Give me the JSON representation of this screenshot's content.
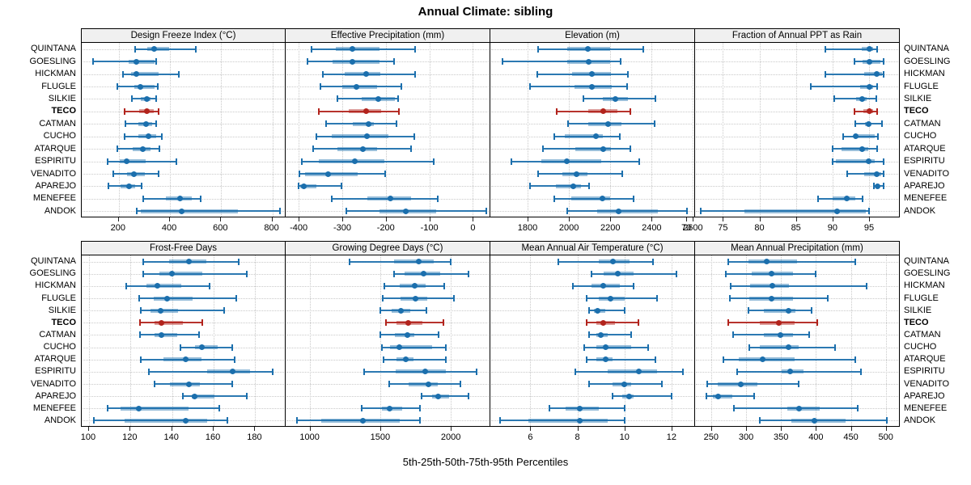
{
  "title": "Annual Climate: sibling",
  "caption": "5th-25th-50th-75th-95th Percentiles",
  "highlight_site": "TECO",
  "colors": {
    "series": "#1b6fad",
    "highlight": "#b2231c",
    "header_bg": "#f0f0f0",
    "grid": "#c9c9c9",
    "panel_border": "#000000"
  },
  "sites": [
    "QUINTANA",
    "GOESLING",
    "HICKMAN",
    "FLUGLE",
    "SILKIE",
    "TECO",
    "CATMAN",
    "CUCHO",
    "ATARQUE",
    "ESPIRITU",
    "VENADITO",
    "APAREJO",
    "MENEFEE",
    "ANDOK"
  ],
  "chart_data": {
    "type": "interval-dotplot-trellis",
    "note": "values per site are [p5, p25, p50, p75, p95] percentiles",
    "layout": {
      "rows": 2,
      "cols": 4,
      "grid": "dotted",
      "legend": "none",
      "highlight": "TECO"
    },
    "panels": [
      {
        "title": "Design Freeze Index (°C)",
        "ticks": [
          200,
          400,
          600,
          800
        ],
        "xlim": [
          55,
          855
        ],
        "values": [
          [
            265,
            312,
            337,
            398,
            500
          ],
          [
            100,
            237,
            267,
            339,
            345
          ],
          [
            215,
            247,
            269,
            355,
            433
          ],
          [
            195,
            262,
            283,
            340,
            353
          ],
          [
            250,
            285,
            310,
            323,
            346
          ],
          [
            222,
            280,
            308,
            338,
            356
          ],
          [
            227,
            277,
            305,
            331,
            345
          ],
          [
            224,
            277,
            316,
            345,
            368
          ],
          [
            195,
            254,
            293,
            323,
            358
          ],
          [
            157,
            204,
            231,
            306,
            425
          ],
          [
            177,
            233,
            260,
            301,
            355
          ],
          [
            160,
            208,
            240,
            263,
            290
          ],
          [
            295,
            385,
            440,
            485,
            520
          ],
          [
            270,
            285,
            445,
            665,
            830
          ]
        ]
      },
      {
        "title": "Effective Precipitation (mm)",
        "ticks": [
          -400,
          -300,
          -200,
          -100,
          0
        ],
        "xlim": [
          -430,
          40
        ],
        "values": [
          [
            -371,
            -315,
            -276,
            -214,
            -132
          ],
          [
            -380,
            -322,
            -277,
            -215,
            -181
          ],
          [
            -345,
            -295,
            -246,
            -212,
            -132
          ],
          [
            -350,
            -300,
            -267,
            -220,
            -165
          ],
          [
            -312,
            -256,
            -218,
            -180,
            -172
          ],
          [
            -354,
            -286,
            -246,
            -210,
            -169
          ],
          [
            -338,
            -276,
            -240,
            -228,
            -176
          ],
          [
            -359,
            -325,
            -243,
            -194,
            -134
          ],
          [
            -367,
            -312,
            -253,
            -220,
            -142
          ],
          [
            -393,
            -354,
            -271,
            -204,
            -90
          ],
          [
            -398,
            -385,
            -333,
            -265,
            -201
          ],
          [
            -400,
            -397,
            -389,
            -360,
            -302
          ],
          [
            -325,
            -243,
            -189,
            -142,
            -80
          ],
          [
            -290,
            -215,
            -155,
            -85,
            30
          ]
        ]
      },
      {
        "title": "Elevation (m)",
        "ticks": [
          1800,
          2000,
          2200,
          2400,
          2600
        ],
        "xlim": [
          1620,
          2610
        ],
        "values": [
          [
            1850,
            1990,
            2090,
            2200,
            2360
          ],
          [
            1680,
            1990,
            2095,
            2200,
            2250
          ],
          [
            1845,
            2015,
            2110,
            2205,
            2285
          ],
          [
            1810,
            2025,
            2110,
            2205,
            2280
          ],
          [
            2070,
            2165,
            2225,
            2285,
            2420
          ],
          [
            1940,
            2095,
            2165,
            2235,
            2295
          ],
          [
            1995,
            2095,
            2190,
            2255,
            2415
          ],
          [
            1930,
            1980,
            2130,
            2165,
            2245
          ],
          [
            1875,
            2030,
            2165,
            2205,
            2295
          ],
          [
            1720,
            1865,
            1990,
            2155,
            2340
          ],
          [
            1850,
            1970,
            2037,
            2090,
            2257
          ],
          [
            1810,
            1937,
            2020,
            2057,
            2097
          ],
          [
            1930,
            2010,
            2160,
            2200,
            2313
          ],
          [
            1990,
            2137,
            2240,
            2430,
            2570
          ]
        ]
      },
      {
        "title": "Fraction of Annual PPT as Rain",
        "ticks": [
          70,
          75,
          80,
          85,
          90,
          95
        ],
        "xlim": [
          71.2,
          99.2
        ],
        "values": [
          [
            89,
            94,
            95.1,
            95.5,
            96.1
          ],
          [
            93,
            94.1,
            95.1,
            96.5,
            97
          ],
          [
            89,
            94.3,
            96,
            96.8,
            97
          ],
          [
            87,
            93.8,
            95,
            95.6,
            96.1
          ],
          [
            90.2,
            93.2,
            94.1,
            94.7,
            96
          ],
          [
            93,
            94.2,
            95,
            95.5,
            96.1
          ],
          [
            93.1,
            94.4,
            94.9,
            95.2,
            96.8
          ],
          [
            91.5,
            92.9,
            93.2,
            95.8,
            96.2
          ],
          [
            90,
            91.2,
            94,
            94.9,
            96.1
          ],
          [
            90,
            90.5,
            94.9,
            95.8,
            97
          ],
          [
            92,
            94.3,
            96,
            96.6,
            97
          ],
          [
            95.7,
            96,
            96.2,
            96.4,
            97
          ],
          [
            88,
            90,
            92,
            93.1,
            94.1
          ],
          [
            72,
            78,
            90.6,
            94.6,
            95
          ]
        ]
      },
      {
        "title": "Frost-Free Days",
        "ticks": [
          100,
          120,
          140,
          160,
          180
        ],
        "xlim": [
          96.5,
          195
        ],
        "values": [
          [
            126,
            138.5,
            148,
            156.5,
            172
          ],
          [
            126,
            134,
            140,
            154.5,
            176
          ],
          [
            118,
            127.5,
            133,
            144.5,
            158
          ],
          [
            124,
            131,
            137.5,
            150,
            171
          ],
          [
            125,
            129.5,
            134.5,
            143,
            165
          ],
          [
            124.5,
            131.5,
            135,
            145,
            154.5
          ],
          [
            124.5,
            131.5,
            135,
            142.5,
            153
          ],
          [
            144,
            151,
            154.5,
            162,
            169
          ],
          [
            125,
            136,
            146.5,
            154,
            170
          ],
          [
            129,
            157,
            169,
            177.5,
            188.5
          ],
          [
            131.5,
            139,
            148,
            153.5,
            169
          ],
          [
            145,
            149.5,
            151,
            160.5,
            176
          ],
          [
            109,
            115,
            124,
            148,
            162.5
          ],
          [
            102.5,
            117,
            146.5,
            157,
            166.5
          ]
        ]
      },
      {
        "title": "Growing Degree Days (°C)",
        "ticks": [
          1000,
          1500,
          2000
        ],
        "xlim": [
          830,
          2280
        ],
        "values": [
          [
            1280,
            1600,
            1775,
            1880,
            2000
          ],
          [
            1600,
            1675,
            1805,
            1925,
            2125
          ],
          [
            1527,
            1640,
            1745,
            1820,
            1955
          ],
          [
            1517,
            1642,
            1748,
            1834,
            2020
          ],
          [
            1498,
            1580,
            1646,
            1710,
            1830
          ],
          [
            1542,
            1613,
            1696,
            1800,
            1950
          ],
          [
            1503,
            1603,
            1690,
            1744,
            1916
          ],
          [
            1513,
            1570,
            1638,
            1868,
            1964
          ],
          [
            1522,
            1613,
            1680,
            1734,
            1964
          ],
          [
            1388,
            1609,
            1820,
            1964,
            2185
          ],
          [
            1565,
            1700,
            1843,
            1906,
            2070
          ],
          [
            1795,
            1868,
            1910,
            1987,
            2127
          ],
          [
            1369,
            1513,
            1565,
            1657,
            1782
          ],
          [
            908,
            1080,
            1378,
            1638,
            1782
          ]
        ]
      },
      {
        "title": "Mean Annual Air Temperature (°C)",
        "ticks": [
          6,
          8,
          10,
          12
        ],
        "xlim": [
          4.3,
          13.0
        ],
        "values": [
          [
            7.2,
            8.9,
            9.5,
            10.2,
            11.2
          ],
          [
            8.6,
            9.1,
            9.7,
            10.4,
            12.2
          ],
          [
            7.8,
            8.6,
            9.1,
            9.8,
            10.4
          ],
          [
            8.4,
            8.9,
            9.4,
            10.0,
            11.4
          ],
          [
            8.5,
            8.7,
            8.85,
            9.2,
            10.0
          ],
          [
            8.4,
            8.8,
            9.1,
            9.6,
            10.6
          ],
          [
            8.5,
            8.8,
            9.0,
            9.3,
            10.3
          ],
          [
            8.3,
            8.8,
            9.2,
            10.3,
            11.0
          ],
          [
            8.4,
            8.8,
            9.2,
            9.5,
            11.3
          ],
          [
            7.9,
            9.3,
            10.6,
            11.4,
            12.5
          ],
          [
            8.5,
            9.5,
            10.0,
            10.3,
            11.6
          ],
          [
            9.5,
            9.9,
            10.2,
            10.4,
            12.0
          ],
          [
            6.8,
            7.5,
            8.1,
            8.9,
            10.0
          ],
          [
            4.7,
            5.9,
            8.1,
            9.3,
            10.0
          ]
        ]
      },
      {
        "title": "Mean Annual Precipitation (mm)",
        "ticks": [
          250,
          300,
          350,
          400,
          450,
          500
        ],
        "xlim": [
          227,
          520
        ],
        "values": [
          [
            275,
            303,
            330,
            373,
            456
          ],
          [
            271,
            308,
            336,
            367,
            399
          ],
          [
            278,
            306,
            338,
            361,
            472
          ],
          [
            277,
            305,
            336,
            367,
            417
          ],
          [
            304,
            326,
            361,
            371,
            394
          ],
          [
            275,
            320,
            347,
            369,
            402
          ],
          [
            282,
            326,
            349,
            367,
            390
          ],
          [
            305,
            320,
            361,
            375,
            427
          ],
          [
            268,
            289,
            324,
            369,
            456
          ],
          [
            287,
            351,
            363,
            382,
            464
          ],
          [
            244,
            259,
            293,
            316,
            375
          ],
          [
            243,
            252,
            260,
            280,
            312
          ],
          [
            283,
            359,
            376,
            405,
            460
          ],
          [
            320,
            365,
            398,
            442,
            501
          ]
        ]
      }
    ]
  }
}
